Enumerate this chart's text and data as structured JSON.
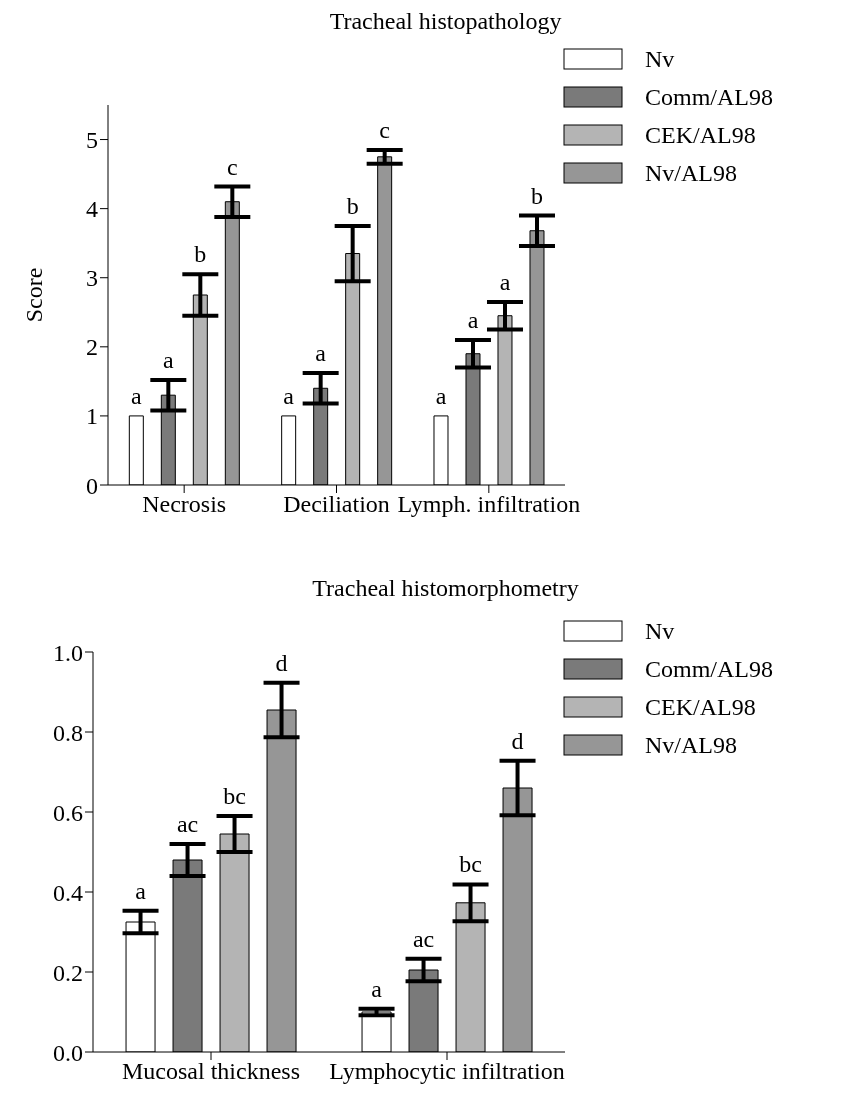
{
  "chart_data": [
    {
      "type": "bar",
      "title": "Tracheal histopathology",
      "ylabel": "Score",
      "categories": [
        "Necrosis",
        "Deciliation",
        "Lymph. infiltration"
      ],
      "series": [
        {
          "name": "Nv",
          "color": "#ffffff",
          "values": [
            1,
            1,
            1
          ],
          "value_labels": [
            "a",
            "a",
            "a"
          ]
        },
        {
          "name": "Comm/AL98",
          "color": "#7a7a7a",
          "values": [
            1.3,
            1.4,
            1.9
          ],
          "errors": [
            0.22,
            0.22,
            0.2
          ],
          "value_labels": [
            "a",
            "a",
            "a"
          ]
        },
        {
          "name": "CEK/AL98",
          "color": "#b4b4b4",
          "values": [
            2.75,
            3.35,
            2.45
          ],
          "errors": [
            0.3,
            0.4,
            0.2
          ],
          "value_labels": [
            "b",
            "b",
            "a"
          ]
        },
        {
          "name": "Nv/AL98",
          "color": "#969696",
          "values": [
            4.1,
            4.75,
            3.68
          ],
          "errors": [
            0.22,
            0.1,
            0.22
          ],
          "value_labels": [
            "c",
            "c",
            "b"
          ]
        }
      ],
      "ylim": [
        0,
        5.5
      ],
      "yticks": [
        0,
        1,
        2,
        3,
        4,
        5
      ],
      "legend": "top right"
    },
    {
      "type": "bar",
      "title": "Tracheal histomorphometry",
      "categories": [
        "Mucosal thickness",
        "Lymphocytic infiltration"
      ],
      "series": [
        {
          "name": "Nv",
          "color": "#ffffff",
          "values": [
            0.325,
            0.1
          ],
          "errors": [
            0.028,
            0.008
          ],
          "value_labels": [
            "a",
            "a"
          ]
        },
        {
          "name": "Comm/AL98",
          "color": "#7a7a7a",
          "values": [
            0.48,
            0.205
          ],
          "errors": [
            0.04,
            0.028
          ],
          "value_labels": [
            "ac",
            "ac"
          ]
        },
        {
          "name": "CEK/AL98",
          "color": "#b4b4b4",
          "values": [
            0.545,
            0.373
          ],
          "errors": [
            0.045,
            0.046
          ],
          "value_labels": [
            "bc",
            "bc"
          ]
        },
        {
          "name": "Nv/AL98",
          "color": "#969696",
          "values": [
            0.855,
            0.66
          ],
          "errors": [
            0.068,
            0.068
          ],
          "value_labels": [
            "d",
            "d"
          ]
        }
      ],
      "ylim": [
        0,
        1.0
      ],
      "yticks": [
        {
          "value": 0,
          "label": "0.0"
        },
        {
          "value": 0.2,
          "label": "0.2"
        },
        {
          "value": 0.4,
          "label": "0.4"
        },
        {
          "value": 0.6,
          "label": "0.6"
        },
        {
          "value": 0.8,
          "label": "0.8"
        },
        {
          "value": 1,
          "label": "1.0"
        }
      ],
      "legend": "top right"
    }
  ]
}
